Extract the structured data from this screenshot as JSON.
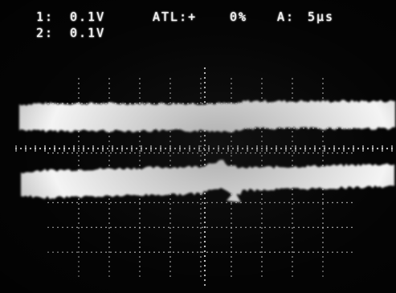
{
  "readout": {
    "ch1_label": "1:",
    "ch1_scale": "0.1V",
    "ch2_label": "2:",
    "ch2_scale": "0.1V",
    "trigger": "ATL:+",
    "trigger_level": "0%",
    "timebase_label": "A:",
    "timebase": "5µs"
  },
  "colors": {
    "background": "#050505",
    "trace": "#f4f4f4",
    "graticule": "#d9d9d9",
    "text": "#f2f2f2"
  },
  "graticule": {
    "divisions_x": 10,
    "divisions_y": 8,
    "dotted_grid": true,
    "center_cross": true
  }
}
